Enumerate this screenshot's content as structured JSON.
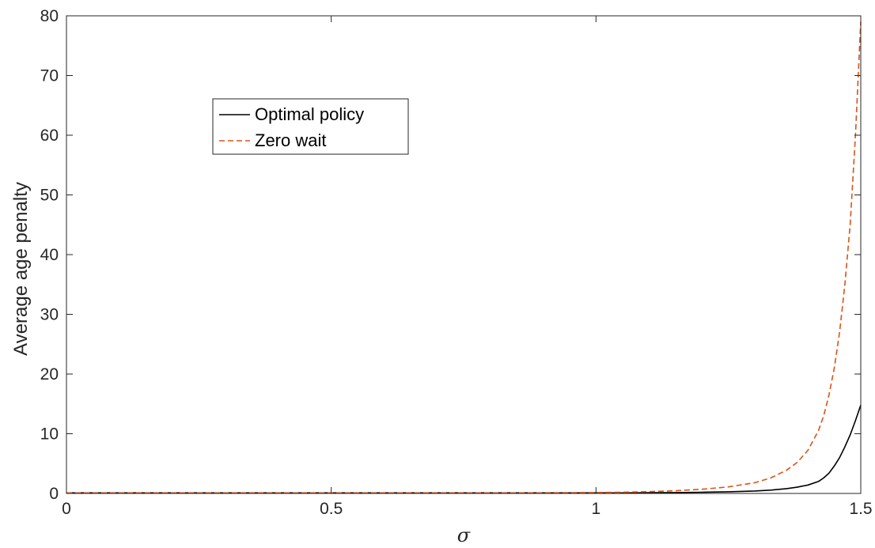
{
  "chart_data": {
    "type": "line",
    "xlabel": "σ",
    "ylabel": "Average age penalty",
    "xlim": [
      0,
      1.5
    ],
    "ylim": [
      0,
      80
    ],
    "xticks": [
      0,
      0.5,
      1,
      1.5
    ],
    "xtick_labels": [
      "0",
      "0.5",
      "1",
      "1.5"
    ],
    "yticks": [
      0,
      10,
      20,
      30,
      40,
      50,
      60,
      70,
      80
    ],
    "ytick_labels": [
      "0",
      "10",
      "20",
      "30",
      "40",
      "50",
      "60",
      "70",
      "80"
    ],
    "grid": false,
    "legend_position": "upper-left-inside",
    "series": [
      {
        "name": "Optimal policy",
        "color": "#000000",
        "style": "solid",
        "x": [
          0.0,
          0.1,
          0.2,
          0.3,
          0.4,
          0.5,
          0.6,
          0.7,
          0.8,
          0.9,
          1.0,
          1.05,
          1.1,
          1.15,
          1.2,
          1.25,
          1.3,
          1.33,
          1.36,
          1.38,
          1.4,
          1.42,
          1.43,
          1.44,
          1.45,
          1.46,
          1.47,
          1.48,
          1.49,
          1.5
        ],
        "y": [
          0.1,
          0.1,
          0.1,
          0.1,
          0.1,
          0.1,
          0.1,
          0.1,
          0.1,
          0.1,
          0.1,
          0.1,
          0.12,
          0.15,
          0.2,
          0.28,
          0.4,
          0.55,
          0.8,
          1.05,
          1.4,
          2.0,
          2.6,
          3.4,
          4.6,
          6.0,
          7.8,
          9.8,
          12.2,
          14.8
        ]
      },
      {
        "name": "Zero wait",
        "color": "#D95319",
        "style": "dashed",
        "x": [
          0.0,
          0.1,
          0.2,
          0.3,
          0.4,
          0.5,
          0.6,
          0.7,
          0.8,
          0.9,
          1.0,
          1.05,
          1.1,
          1.15,
          1.2,
          1.25,
          1.3,
          1.33,
          1.36,
          1.38,
          1.4,
          1.42,
          1.43,
          1.44,
          1.45,
          1.46,
          1.47,
          1.48,
          1.49,
          1.5
        ],
        "y": [
          0.1,
          0.1,
          0.1,
          0.1,
          0.1,
          0.1,
          0.1,
          0.1,
          0.1,
          0.1,
          0.15,
          0.2,
          0.3,
          0.45,
          0.7,
          1.1,
          1.8,
          2.6,
          3.9,
          5.2,
          7.2,
          10.5,
          13.0,
          16.5,
          21.0,
          27.0,
          35.0,
          45.0,
          60.0,
          79.0
        ]
      }
    ]
  }
}
